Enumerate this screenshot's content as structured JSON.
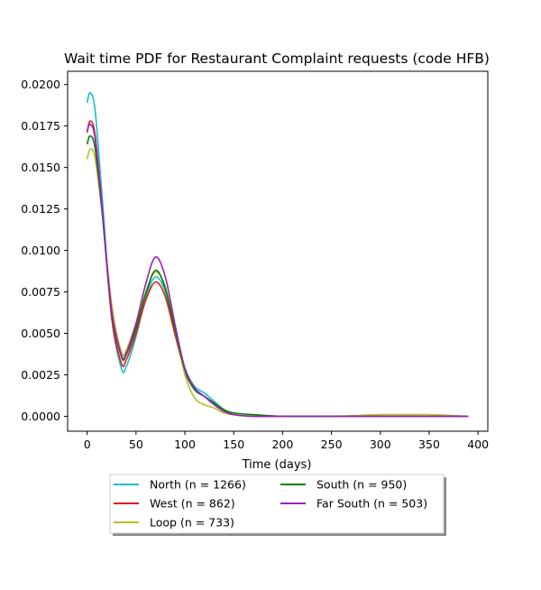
{
  "chart_data": {
    "type": "line",
    "title": "Wait time PDF for Restaurant Complaint  requests (code HFB)",
    "xlabel": "Time (days)",
    "ylabel": "",
    "xlim": [
      -20,
      410
    ],
    "ylim": [
      -0.0009,
      0.0208
    ],
    "x_ticks": [
      0,
      50,
      100,
      150,
      200,
      250,
      300,
      350,
      400
    ],
    "y_ticks": [
      0.0,
      0.0025,
      0.005,
      0.0075,
      0.01,
      0.0125,
      0.015,
      0.0175,
      0.02
    ],
    "y_tick_labels": [
      "0.0000",
      "0.0025",
      "0.0050",
      "0.0075",
      "0.0100",
      "0.0125",
      "0.0150",
      "0.0175",
      "0.0200"
    ],
    "grid": false,
    "legend_placement": "below",
    "series": [
      {
        "name": "North (n = 1266)",
        "color": "#17becf",
        "x": [
          0,
          3,
          8,
          15,
          25,
          35,
          40,
          50,
          60,
          70,
          80,
          90,
          100,
          110,
          120,
          130,
          140,
          150,
          170,
          200,
          250,
          300,
          350,
          390
        ],
        "y": [
          0.0189,
          0.0195,
          0.0185,
          0.0135,
          0.006,
          0.0029,
          0.003,
          0.0048,
          0.0072,
          0.0084,
          0.0075,
          0.0051,
          0.0029,
          0.0018,
          0.0014,
          0.0009,
          0.0004,
          0.0001,
          0.0,
          0.0,
          0.0,
          0.0,
          0.0,
          0.0
        ]
      },
      {
        "name": "West (n = 862)",
        "color": "#e41a1c",
        "x": [
          0,
          3,
          8,
          15,
          25,
          35,
          40,
          50,
          60,
          70,
          80,
          90,
          100,
          110,
          120,
          130,
          140,
          150,
          170,
          200,
          250,
          300,
          350,
          390
        ],
        "y": [
          0.0171,
          0.0178,
          0.017,
          0.0128,
          0.006,
          0.0032,
          0.0034,
          0.005,
          0.007,
          0.0081,
          0.0072,
          0.0049,
          0.0027,
          0.0016,
          0.0012,
          0.0007,
          0.0003,
          0.0001,
          0.0,
          0.0,
          0.0,
          0.0,
          0.0,
          0.0
        ]
      },
      {
        "name": "Loop (n = 733)",
        "color": "#bcbd22",
        "x": [
          0,
          3,
          8,
          15,
          25,
          35,
          40,
          50,
          60,
          70,
          80,
          90,
          100,
          110,
          120,
          130,
          140,
          150,
          170,
          200,
          250,
          300,
          325,
          350,
          390
        ],
        "y": [
          0.0155,
          0.0161,
          0.0156,
          0.0124,
          0.0068,
          0.0039,
          0.004,
          0.0056,
          0.0075,
          0.0087,
          0.0078,
          0.0052,
          0.0025,
          0.0011,
          0.0007,
          0.0005,
          0.0002,
          0.0001,
          0.0,
          0.0,
          0.0,
          0.0001,
          0.0001,
          0.0001,
          0.0
        ]
      },
      {
        "name": "South (n = 950)",
        "color": "#008000",
        "x": [
          0,
          3,
          8,
          15,
          25,
          35,
          40,
          50,
          60,
          70,
          80,
          90,
          100,
          110,
          120,
          130,
          140,
          150,
          170,
          200,
          250,
          300,
          350,
          390
        ],
        "y": [
          0.0164,
          0.0169,
          0.0162,
          0.0125,
          0.0063,
          0.0036,
          0.0037,
          0.0053,
          0.0074,
          0.0088,
          0.0077,
          0.0052,
          0.0028,
          0.0016,
          0.0012,
          0.0008,
          0.0004,
          0.0002,
          0.0001,
          0.0,
          0.0,
          0.0,
          0.0,
          0.0
        ]
      },
      {
        "name": "Far South (n = 503)",
        "color": "#9b1fbf",
        "x": [
          0,
          3,
          8,
          15,
          25,
          35,
          40,
          50,
          60,
          70,
          80,
          90,
          100,
          110,
          120,
          130,
          140,
          150,
          170,
          200,
          250,
          300,
          350,
          390
        ],
        "y": [
          0.0172,
          0.0176,
          0.0168,
          0.0127,
          0.0064,
          0.0037,
          0.0038,
          0.0056,
          0.008,
          0.0096,
          0.0084,
          0.0055,
          0.0029,
          0.0017,
          0.0012,
          0.0007,
          0.0003,
          0.0001,
          0.0,
          0.0,
          0.0,
          0.0,
          0.0,
          0.0
        ]
      }
    ]
  }
}
